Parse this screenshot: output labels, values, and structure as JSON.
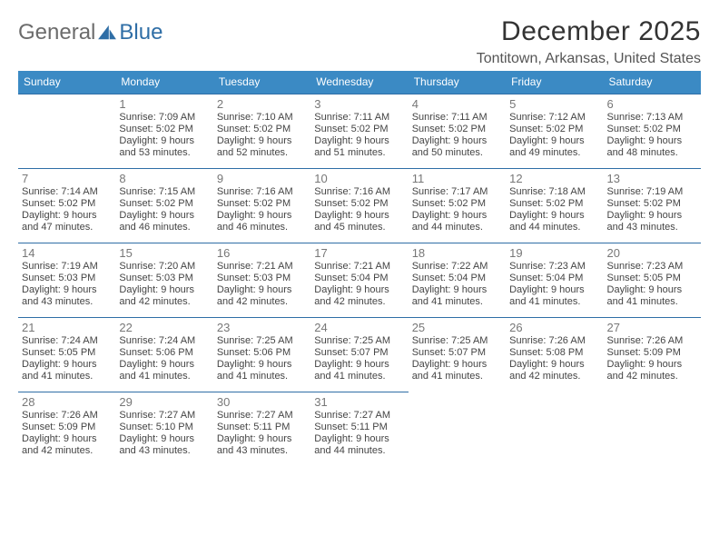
{
  "logo": {
    "word1": "General",
    "word2": "Blue",
    "mark_color": "#2f6ea6"
  },
  "title": {
    "month_year": "December 2025",
    "location": "Tontitown, Arkansas, United States"
  },
  "colors": {
    "header_bg": "#3b8ac4",
    "header_text": "#ffffff",
    "rule": "#2f6ea6",
    "daynum": "#777777",
    "body_text": "#444444",
    "bg": "#ffffff"
  },
  "weekdays": [
    "Sunday",
    "Monday",
    "Tuesday",
    "Wednesday",
    "Thursday",
    "Friday",
    "Saturday"
  ],
  "calendar": {
    "type": "table",
    "first_weekday_index": 1,
    "cell_fontsize": 11,
    "daynum_fontsize": 13,
    "days": [
      {
        "n": 1,
        "sunrise": "7:09 AM",
        "sunset": "5:02 PM",
        "daylight": "9 hours and 53 minutes."
      },
      {
        "n": 2,
        "sunrise": "7:10 AM",
        "sunset": "5:02 PM",
        "daylight": "9 hours and 52 minutes."
      },
      {
        "n": 3,
        "sunrise": "7:11 AM",
        "sunset": "5:02 PM",
        "daylight": "9 hours and 51 minutes."
      },
      {
        "n": 4,
        "sunrise": "7:11 AM",
        "sunset": "5:02 PM",
        "daylight": "9 hours and 50 minutes."
      },
      {
        "n": 5,
        "sunrise": "7:12 AM",
        "sunset": "5:02 PM",
        "daylight": "9 hours and 49 minutes."
      },
      {
        "n": 6,
        "sunrise": "7:13 AM",
        "sunset": "5:02 PM",
        "daylight": "9 hours and 48 minutes."
      },
      {
        "n": 7,
        "sunrise": "7:14 AM",
        "sunset": "5:02 PM",
        "daylight": "9 hours and 47 minutes."
      },
      {
        "n": 8,
        "sunrise": "7:15 AM",
        "sunset": "5:02 PM",
        "daylight": "9 hours and 46 minutes."
      },
      {
        "n": 9,
        "sunrise": "7:16 AM",
        "sunset": "5:02 PM",
        "daylight": "9 hours and 46 minutes."
      },
      {
        "n": 10,
        "sunrise": "7:16 AM",
        "sunset": "5:02 PM",
        "daylight": "9 hours and 45 minutes."
      },
      {
        "n": 11,
        "sunrise": "7:17 AM",
        "sunset": "5:02 PM",
        "daylight": "9 hours and 44 minutes."
      },
      {
        "n": 12,
        "sunrise": "7:18 AM",
        "sunset": "5:02 PM",
        "daylight": "9 hours and 44 minutes."
      },
      {
        "n": 13,
        "sunrise": "7:19 AM",
        "sunset": "5:02 PM",
        "daylight": "9 hours and 43 minutes."
      },
      {
        "n": 14,
        "sunrise": "7:19 AM",
        "sunset": "5:03 PM",
        "daylight": "9 hours and 43 minutes."
      },
      {
        "n": 15,
        "sunrise": "7:20 AM",
        "sunset": "5:03 PM",
        "daylight": "9 hours and 42 minutes."
      },
      {
        "n": 16,
        "sunrise": "7:21 AM",
        "sunset": "5:03 PM",
        "daylight": "9 hours and 42 minutes."
      },
      {
        "n": 17,
        "sunrise": "7:21 AM",
        "sunset": "5:04 PM",
        "daylight": "9 hours and 42 minutes."
      },
      {
        "n": 18,
        "sunrise": "7:22 AM",
        "sunset": "5:04 PM",
        "daylight": "9 hours and 41 minutes."
      },
      {
        "n": 19,
        "sunrise": "7:23 AM",
        "sunset": "5:04 PM",
        "daylight": "9 hours and 41 minutes."
      },
      {
        "n": 20,
        "sunrise": "7:23 AM",
        "sunset": "5:05 PM",
        "daylight": "9 hours and 41 minutes."
      },
      {
        "n": 21,
        "sunrise": "7:24 AM",
        "sunset": "5:05 PM",
        "daylight": "9 hours and 41 minutes."
      },
      {
        "n": 22,
        "sunrise": "7:24 AM",
        "sunset": "5:06 PM",
        "daylight": "9 hours and 41 minutes."
      },
      {
        "n": 23,
        "sunrise": "7:25 AM",
        "sunset": "5:06 PM",
        "daylight": "9 hours and 41 minutes."
      },
      {
        "n": 24,
        "sunrise": "7:25 AM",
        "sunset": "5:07 PM",
        "daylight": "9 hours and 41 minutes."
      },
      {
        "n": 25,
        "sunrise": "7:25 AM",
        "sunset": "5:07 PM",
        "daylight": "9 hours and 41 minutes."
      },
      {
        "n": 26,
        "sunrise": "7:26 AM",
        "sunset": "5:08 PM",
        "daylight": "9 hours and 42 minutes."
      },
      {
        "n": 27,
        "sunrise": "7:26 AM",
        "sunset": "5:09 PM",
        "daylight": "9 hours and 42 minutes."
      },
      {
        "n": 28,
        "sunrise": "7:26 AM",
        "sunset": "5:09 PM",
        "daylight": "9 hours and 42 minutes."
      },
      {
        "n": 29,
        "sunrise": "7:27 AM",
        "sunset": "5:10 PM",
        "daylight": "9 hours and 43 minutes."
      },
      {
        "n": 30,
        "sunrise": "7:27 AM",
        "sunset": "5:11 PM",
        "daylight": "9 hours and 43 minutes."
      },
      {
        "n": 31,
        "sunrise": "7:27 AM",
        "sunset": "5:11 PM",
        "daylight": "9 hours and 44 minutes."
      }
    ]
  },
  "labels": {
    "sunrise": "Sunrise: ",
    "sunset": "Sunset: ",
    "daylight": "Daylight: "
  }
}
